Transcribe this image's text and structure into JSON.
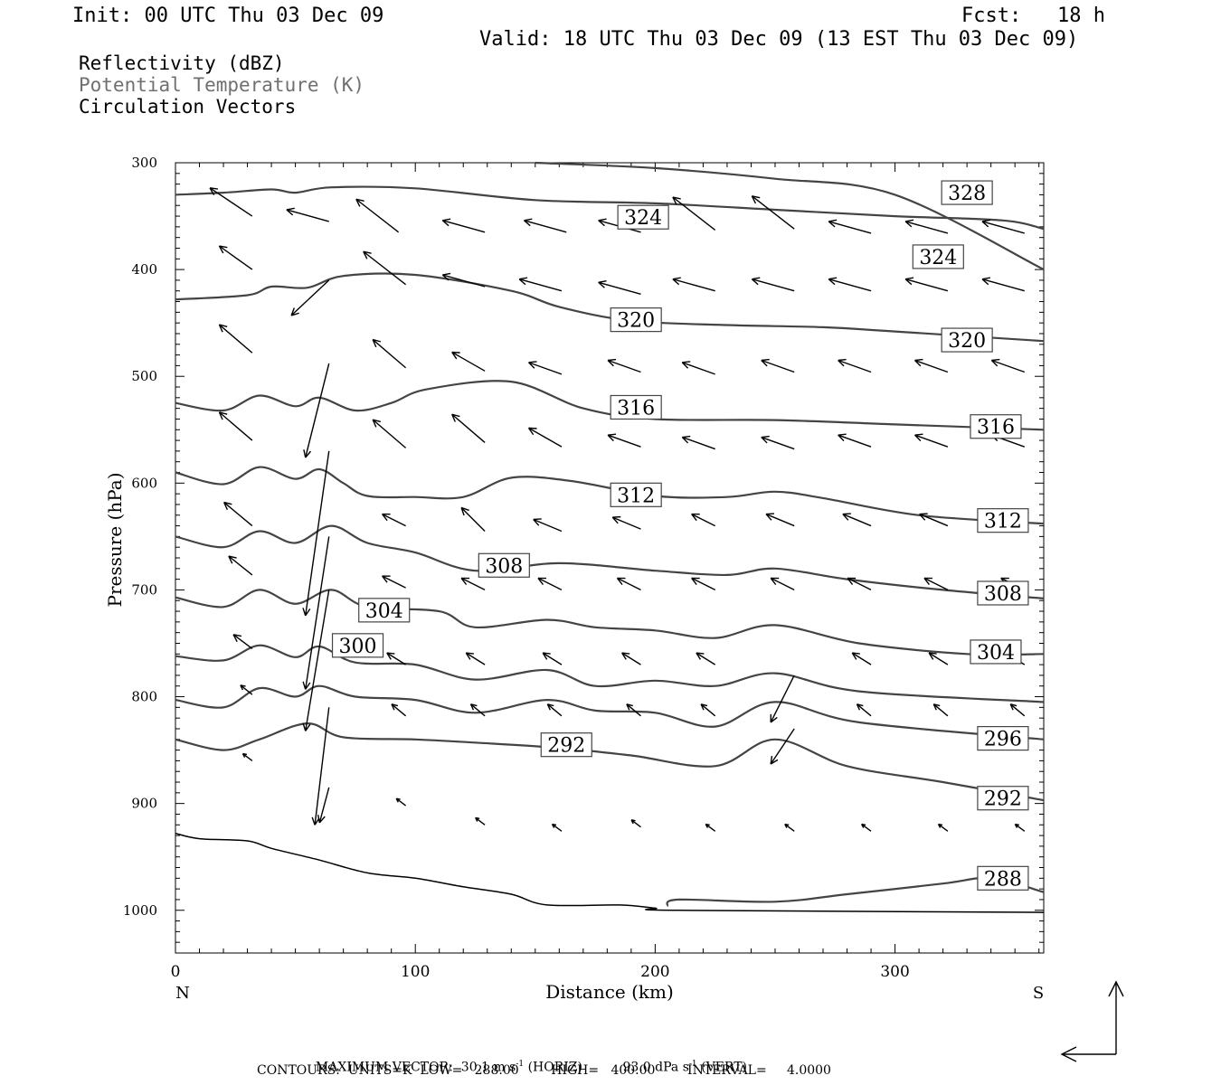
{
  "header": {
    "init": "Init: 00 UTC Thu 03 Dec 09",
    "fcst": "Fcst:   18 h",
    "valid": "Valid: 18 UTC Thu 03 Dec 09 (13 EST Thu 03 Dec 09)"
  },
  "legend": {
    "items": [
      {
        "label": "Reflectivity (dBZ)",
        "color": "#000000"
      },
      {
        "label": "Potential Temperature (K)",
        "color": "#707070"
      },
      {
        "label": "Circulation Vectors",
        "color": "#000000"
      }
    ]
  },
  "footer": {
    "max_vector_prefix": "MAXIMUM VECTOR:",
    "max_horiz": "30.1 m s",
    "horiz_tag": "(HORIZ)",
    "max_vert": "93.0 dPa s",
    "vert_tag": "(VERT)",
    "exponent": "-1",
    "contours": "CONTOURS:  UNITS=K  LOW=   288.00        HIGH=   400.00        INTERVAL=     4.0000"
  },
  "chart_data": {
    "type": "line",
    "xlabel": "Distance (km)",
    "ylabel": "Pressure (hPa)",
    "xlim": [
      0,
      362
    ],
    "ylim": [
      1040,
      300
    ],
    "x_ticks": [
      "0",
      "100",
      "200",
      "300"
    ],
    "y_ticks": [
      "300",
      "400",
      "500",
      "600",
      "700",
      "800",
      "900",
      "1000"
    ],
    "x_end_labels": {
      "left": "N",
      "right": "S"
    },
    "contour_color": "#444444",
    "series": [
      {
        "level": "328",
        "points": [
          [
            0,
            330
          ],
          [
            20,
            328
          ],
          [
            40,
            325
          ],
          [
            50,
            328
          ],
          [
            65,
            323
          ],
          [
            100,
            324
          ],
          [
            150,
            335
          ],
          [
            200,
            338
          ],
          [
            250,
            344
          ],
          [
            300,
            350
          ],
          [
            345,
            354
          ],
          [
            362,
            362
          ]
        ],
        "labels": [
          [
            330,
            328
          ]
        ]
      },
      {
        "level": "324",
        "points": [
          [
            150,
            300
          ],
          [
            200,
            305
          ],
          [
            250,
            315
          ],
          [
            300,
            330
          ],
          [
            362,
            400
          ]
        ],
        "labels": [
          [
            195,
            351
          ],
          [
            318,
            388
          ]
        ]
      },
      {
        "level": "320",
        "points": [
          [
            0,
            428
          ],
          [
            30,
            424
          ],
          [
            40,
            416
          ],
          [
            55,
            417
          ],
          [
            70,
            406
          ],
          [
            100,
            405
          ],
          [
            140,
            420
          ],
          [
            160,
            435
          ],
          [
            190,
            448
          ],
          [
            230,
            452
          ],
          [
            270,
            454
          ],
          [
            300,
            458
          ],
          [
            362,
            467
          ]
        ],
        "labels": [
          [
            192,
            447
          ],
          [
            330,
            466
          ]
        ]
      },
      {
        "level": "316",
        "points": [
          [
            0,
            525
          ],
          [
            20,
            532
          ],
          [
            35,
            518
          ],
          [
            50,
            528
          ],
          [
            60,
            520
          ],
          [
            75,
            532
          ],
          [
            90,
            525
          ],
          [
            105,
            512
          ],
          [
            140,
            505
          ],
          [
            170,
            530
          ],
          [
            200,
            540
          ],
          [
            250,
            541
          ],
          [
            300,
            545
          ],
          [
            362,
            550
          ]
        ],
        "labels": [
          [
            192,
            529
          ],
          [
            342,
            547
          ]
        ]
      },
      {
        "level": "312",
        "points": [
          [
            0,
            590
          ],
          [
            20,
            601
          ],
          [
            35,
            585
          ],
          [
            50,
            596
          ],
          [
            60,
            587
          ],
          [
            70,
            600
          ],
          [
            80,
            612
          ],
          [
            100,
            613
          ],
          [
            120,
            613
          ],
          [
            140,
            595
          ],
          [
            165,
            598
          ],
          [
            200,
            612
          ],
          [
            230,
            613
          ],
          [
            250,
            608
          ],
          [
            270,
            614
          ],
          [
            310,
            630
          ],
          [
            362,
            638
          ]
        ],
        "labels": [
          [
            192,
            611
          ],
          [
            345,
            635
          ]
        ]
      },
      {
        "level": "308",
        "points": [
          [
            0,
            650
          ],
          [
            20,
            660
          ],
          [
            35,
            645
          ],
          [
            50,
            656
          ],
          [
            65,
            640
          ],
          [
            80,
            656
          ],
          [
            100,
            665
          ],
          [
            125,
            682
          ],
          [
            160,
            675
          ],
          [
            200,
            682
          ],
          [
            230,
            686
          ],
          [
            250,
            680
          ],
          [
            280,
            690
          ],
          [
            320,
            700
          ],
          [
            362,
            708
          ]
        ],
        "labels": [
          [
            137,
            677
          ],
          [
            345,
            703
          ]
        ]
      },
      {
        "level": "304",
        "points": [
          [
            0,
            707
          ],
          [
            20,
            716
          ],
          [
            35,
            700
          ],
          [
            50,
            713
          ],
          [
            65,
            700
          ],
          [
            80,
            716
          ],
          [
            110,
            720
          ],
          [
            125,
            735
          ],
          [
            155,
            728
          ],
          [
            175,
            735
          ],
          [
            200,
            738
          ],
          [
            225,
            745
          ],
          [
            250,
            733
          ],
          [
            285,
            750
          ],
          [
            330,
            760
          ],
          [
            362,
            760
          ]
        ],
        "labels": [
          [
            87,
            719
          ],
          [
            342,
            758
          ]
        ]
      },
      {
        "level": "300",
        "points": [
          [
            0,
            762
          ],
          [
            20,
            766
          ],
          [
            35,
            752
          ],
          [
            50,
            763
          ],
          [
            60,
            753
          ],
          [
            75,
            768
          ],
          [
            100,
            770
          ],
          [
            125,
            784
          ],
          [
            155,
            775
          ],
          [
            175,
            790
          ],
          [
            200,
            785
          ],
          [
            225,
            790
          ],
          [
            250,
            778
          ],
          [
            285,
            795
          ],
          [
            362,
            805
          ]
        ],
        "labels": [
          [
            76,
            752
          ]
        ]
      },
      {
        "level": "296",
        "points": [
          [
            0,
            803
          ],
          [
            20,
            810
          ],
          [
            35,
            792
          ],
          [
            50,
            800
          ],
          [
            60,
            790
          ],
          [
            75,
            800
          ],
          [
            100,
            803
          ],
          [
            125,
            815
          ],
          [
            155,
            803
          ],
          [
            175,
            813
          ],
          [
            200,
            815
          ],
          [
            225,
            828
          ],
          [
            250,
            805
          ],
          [
            285,
            824
          ],
          [
            362,
            840
          ]
        ],
        "labels": [
          [
            345,
            839
          ]
        ]
      },
      {
        "level": "292",
        "points": [
          [
            0,
            840
          ],
          [
            20,
            850
          ],
          [
            35,
            840
          ],
          [
            55,
            825
          ],
          [
            70,
            838
          ],
          [
            100,
            840
          ],
          [
            125,
            843
          ],
          [
            160,
            848
          ],
          [
            190,
            855
          ],
          [
            225,
            865
          ],
          [
            250,
            840
          ],
          [
            280,
            865
          ],
          [
            320,
            880
          ],
          [
            362,
            897
          ]
        ],
        "labels": [
          [
            163,
            845
          ],
          [
            345,
            895
          ]
        ]
      },
      {
        "level": "288",
        "points": [
          [
            205,
            996
          ],
          [
            210,
            990
          ],
          [
            250,
            992
          ],
          [
            280,
            985
          ],
          [
            320,
            975
          ],
          [
            340,
            970
          ],
          [
            362,
            983
          ]
        ],
        "labels": [
          [
            345,
            970
          ]
        ]
      }
    ],
    "terrain": [
      [
        0,
        928
      ],
      [
        10,
        933
      ],
      [
        30,
        935
      ],
      [
        40,
        942
      ],
      [
        60,
        953
      ],
      [
        80,
        965
      ],
      [
        100,
        970
      ],
      [
        120,
        978
      ],
      [
        140,
        985
      ],
      [
        155,
        995
      ],
      [
        185,
        995
      ],
      [
        200,
        998
      ],
      [
        210,
        1000
      ],
      [
        362,
        1002
      ]
    ],
    "vectors": [
      [
        32,
        350,
        -18,
        -12
      ],
      [
        64,
        355,
        -18,
        -5
      ],
      [
        93,
        365,
        -18,
        -14
      ],
      [
        129,
        365,
        -18,
        -5
      ],
      [
        163,
        365,
        -18,
        -5
      ],
      [
        194,
        365,
        -18,
        -5
      ],
      [
        225,
        363,
        -18,
        -14
      ],
      [
        258,
        362,
        -18,
        -14
      ],
      [
        290,
        366,
        -18,
        -5
      ],
      [
        322,
        366,
        -18,
        -5
      ],
      [
        354,
        366,
        -18,
        -5
      ],
      [
        32,
        400,
        -14,
        -10
      ],
      [
        64,
        410,
        -16,
        15
      ],
      [
        96,
        414,
        -18,
        -14
      ],
      [
        129,
        416,
        -18,
        -5
      ],
      [
        161,
        420,
        -18,
        -5
      ],
      [
        194,
        423,
        -18,
        -5
      ],
      [
        225,
        420,
        -18,
        -5
      ],
      [
        258,
        420,
        -18,
        -5
      ],
      [
        290,
        420,
        -18,
        -5
      ],
      [
        322,
        420,
        -18,
        -5
      ],
      [
        354,
        420,
        -18,
        -5
      ],
      [
        32,
        478,
        -14,
        -12
      ],
      [
        64,
        488,
        -10,
        40
      ],
      [
        96,
        492,
        -14,
        -12
      ],
      [
        129,
        495,
        -14,
        -8
      ],
      [
        161,
        498,
        -14,
        -5
      ],
      [
        194,
        496,
        -14,
        -5
      ],
      [
        225,
        498,
        -14,
        -5
      ],
      [
        258,
        496,
        -14,
        -5
      ],
      [
        290,
        496,
        -14,
        -5
      ],
      [
        322,
        496,
        -14,
        -5
      ],
      [
        354,
        496,
        -14,
        -5
      ],
      [
        32,
        560,
        -14,
        -12
      ],
      [
        64,
        570,
        -10,
        70
      ],
      [
        96,
        567,
        -14,
        -12
      ],
      [
        129,
        562,
        -14,
        -12
      ],
      [
        161,
        566,
        -14,
        -8
      ],
      [
        194,
        566,
        -14,
        -5
      ],
      [
        225,
        568,
        -14,
        -5
      ],
      [
        258,
        568,
        -14,
        -5
      ],
      [
        290,
        566,
        -14,
        -5
      ],
      [
        322,
        566,
        -14,
        -5
      ],
      [
        354,
        566,
        -14,
        -5
      ],
      [
        32,
        640,
        -12,
        -10
      ],
      [
        64,
        650,
        -10,
        65
      ],
      [
        96,
        640,
        -10,
        -5
      ],
      [
        129,
        645,
        -10,
        -10
      ],
      [
        161,
        645,
        -12,
        -5
      ],
      [
        194,
        643,
        -12,
        -5
      ],
      [
        225,
        640,
        -10,
        -5
      ],
      [
        258,
        640,
        -12,
        -5
      ],
      [
        290,
        640,
        -12,
        -5
      ],
      [
        322,
        640,
        -12,
        -5
      ],
      [
        354,
        640,
        -12,
        -5
      ],
      [
        32,
        686,
        -10,
        -8
      ],
      [
        64,
        700,
        -10,
        60
      ],
      [
        96,
        698,
        -10,
        -5
      ],
      [
        129,
        700,
        -10,
        -5
      ],
      [
        161,
        700,
        -10,
        -5
      ],
      [
        194,
        700,
        -10,
        -5
      ],
      [
        225,
        700,
        -10,
        -5
      ],
      [
        258,
        700,
        -10,
        -5
      ],
      [
        290,
        700,
        -10,
        -5
      ],
      [
        322,
        700,
        -10,
        -5
      ],
      [
        354,
        700,
        -10,
        -5
      ],
      [
        32,
        755,
        -8,
        -6
      ],
      [
        64,
        810,
        -6,
        50
      ],
      [
        96,
        770,
        -8,
        -5
      ],
      [
        129,
        770,
        -8,
        -5
      ],
      [
        161,
        770,
        -8,
        -5
      ],
      [
        194,
        770,
        -8,
        -5
      ],
      [
        225,
        770,
        -8,
        -5
      ],
      [
        258,
        780,
        -10,
        20
      ],
      [
        290,
        770,
        -8,
        -5
      ],
      [
        322,
        770,
        -8,
        -5
      ],
      [
        354,
        770,
        -8,
        -5
      ],
      [
        32,
        798,
        -5,
        -4
      ],
      [
        64,
        800,
        0,
        0
      ],
      [
        96,
        818,
        -6,
        -5
      ],
      [
        129,
        818,
        -6,
        -5
      ],
      [
        161,
        818,
        -6,
        -5
      ],
      [
        194,
        818,
        -6,
        -5
      ],
      [
        225,
        818,
        -6,
        -5
      ],
      [
        258,
        830,
        -10,
        15
      ],
      [
        290,
        818,
        -6,
        -5
      ],
      [
        322,
        818,
        -6,
        -5
      ],
      [
        354,
        818,
        -6,
        -5
      ],
      [
        32,
        860,
        -4,
        -3
      ],
      [
        64,
        885,
        -4,
        15
      ],
      [
        96,
        902,
        -4,
        -3
      ],
      [
        129,
        920,
        -4,
        -3
      ],
      [
        161,
        926,
        -4,
        -3
      ],
      [
        194,
        922,
        -4,
        -3
      ],
      [
        225,
        926,
        -4,
        -3
      ],
      [
        258,
        926,
        -4,
        -3
      ],
      [
        290,
        926,
        -4,
        -3
      ],
      [
        322,
        926,
        -4,
        -3
      ],
      [
        354,
        926,
        -4,
        -3
      ]
    ]
  }
}
